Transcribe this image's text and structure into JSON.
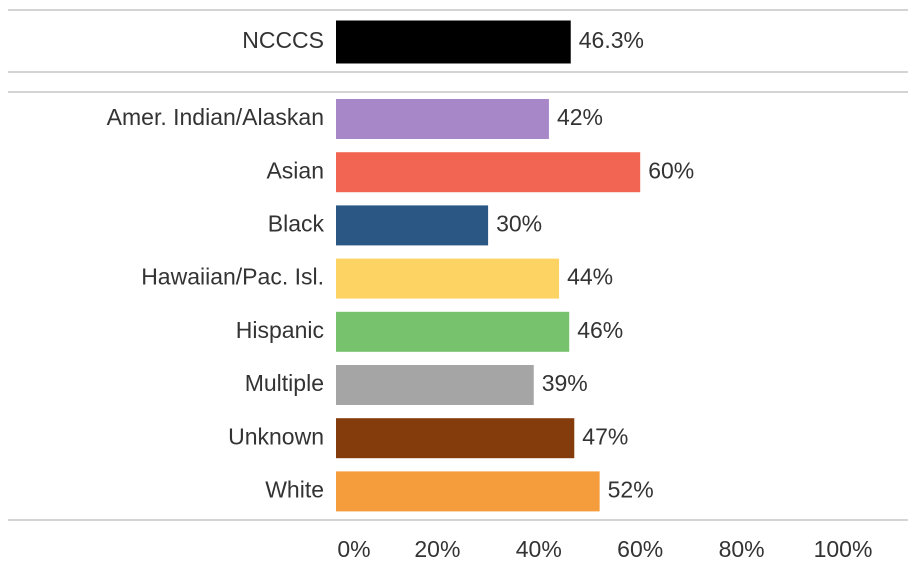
{
  "chart_data": [
    {
      "type": "hbar",
      "categories": [
        "NCCCS"
      ],
      "values": [
        46.3
      ],
      "value_labels": [
        "46.3%"
      ],
      "colors": [
        "#000000"
      ],
      "xlim": [
        0,
        100
      ]
    },
    {
      "type": "hbar",
      "categories": [
        "Amer. Indian/Alaskan",
        "Asian",
        "Black",
        "Hawaiian/Pac. Isl.",
        "Hispanic",
        "Multiple",
        "Unknown",
        "White"
      ],
      "values": [
        42,
        60,
        30,
        44,
        46,
        39,
        47,
        52
      ],
      "value_labels": [
        "42%",
        "60%",
        "30%",
        "44%",
        "46%",
        "39%",
        "47%",
        "52%"
      ],
      "colors": [
        "#a887c8",
        "#f26552",
        "#2a5783",
        "#fdd463",
        "#76c26d",
        "#a5a5a5",
        "#843c0c",
        "#f59d3d"
      ],
      "xlim": [
        0,
        100
      ],
      "xticks": [
        {
          "value": 0,
          "label": "0%"
        },
        {
          "value": 20,
          "label": "20%"
        },
        {
          "value": 40,
          "label": "40%"
        },
        {
          "value": 60,
          "label": "60%"
        },
        {
          "value": 80,
          "label": "80%"
        },
        {
          "value": 100,
          "label": "100%"
        }
      ]
    }
  ]
}
